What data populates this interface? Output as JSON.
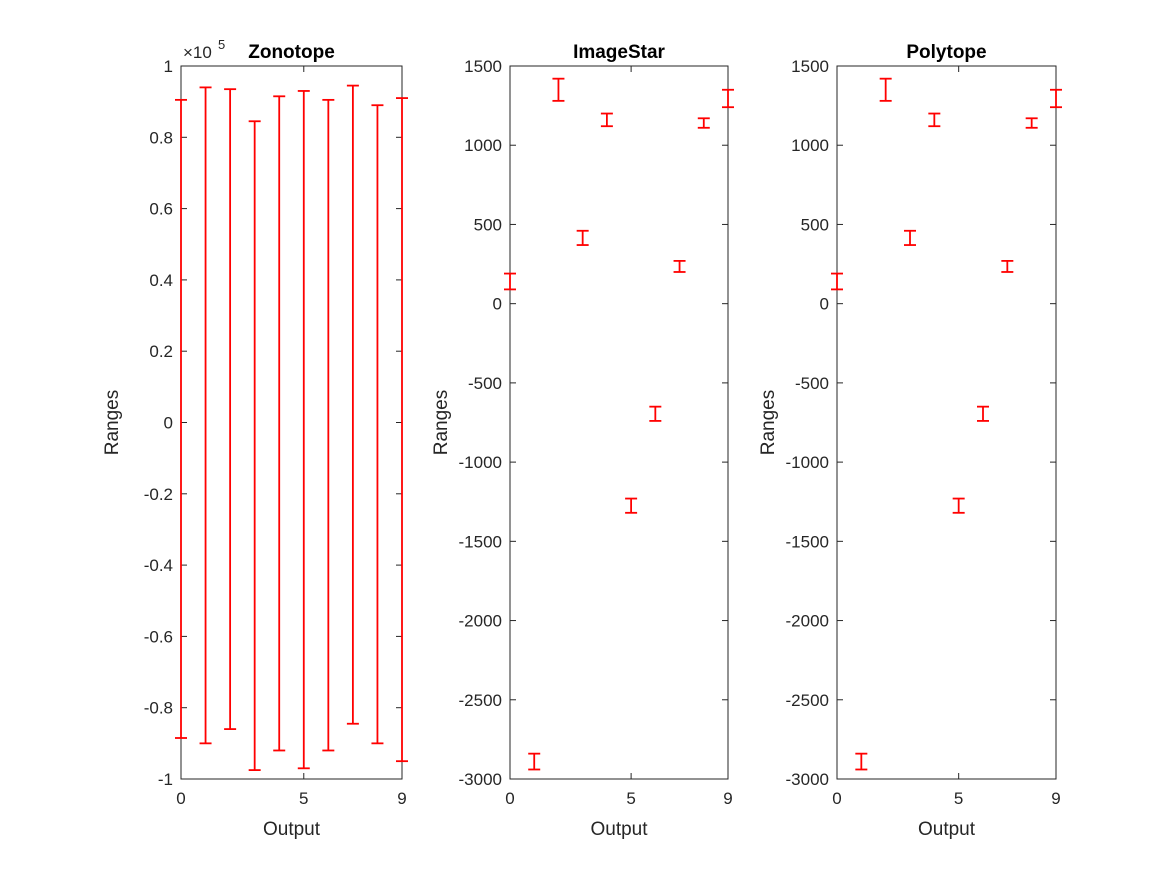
{
  "figure": {
    "background": "#ffffff",
    "error_bar_color": "#ff0000",
    "axis_color": "#262626"
  },
  "chart_data": [
    {
      "type": "errorbar",
      "title": "Zonotope",
      "xlabel": "Output",
      "ylabel": "Ranges",
      "exponent_label": "×10",
      "exponent_power": "5",
      "xlim": [
        0,
        9
      ],
      "ylim": [
        -1,
        1
      ],
      "xticks": [
        0,
        5,
        9
      ],
      "xtick_labels": [
        "0",
        "5",
        "9"
      ],
      "yticks": [
        -1,
        -0.8,
        -0.6,
        -0.4,
        -0.2,
        0,
        0.2,
        0.4,
        0.6,
        0.8,
        1
      ],
      "ytick_labels": [
        "-1",
        "-0.8",
        "-0.6",
        "-0.4",
        "-0.2",
        "0",
        "0.2",
        "0.4",
        "0.6",
        "0.8",
        "1"
      ],
      "grid": false,
      "series": [
        {
          "x": [
            0,
            1,
            2,
            3,
            4,
            5,
            6,
            7,
            8,
            9
          ],
          "lower": [
            -0.885,
            -0.9,
            -0.86,
            -0.975,
            -0.92,
            -0.97,
            -0.92,
            -0.845,
            -0.9,
            -0.95
          ],
          "upper": [
            0.905,
            0.94,
            0.935,
            0.845,
            0.915,
            0.93,
            0.905,
            0.945,
            0.89,
            0.91
          ]
        }
      ]
    },
    {
      "type": "errorbar",
      "title": "ImageStar",
      "xlabel": "Output",
      "ylabel": "Ranges",
      "xlim": [
        0,
        9
      ],
      "ylim": [
        -3000,
        1500
      ],
      "xticks": [
        0,
        5,
        9
      ],
      "xtick_labels": [
        "0",
        "5",
        "9"
      ],
      "yticks": [
        -3000,
        -2500,
        -2000,
        -1500,
        -1000,
        -500,
        0,
        500,
        1000,
        1500
      ],
      "ytick_labels": [
        "-3000",
        "-2500",
        "-2000",
        "-1500",
        "-1000",
        "-500",
        "0",
        "500",
        "1000",
        "1500"
      ],
      "grid": false,
      "series": [
        {
          "x": [
            0,
            1,
            2,
            3,
            4,
            5,
            6,
            7,
            8,
            9
          ],
          "lower": [
            90,
            -2940,
            1280,
            370,
            1120,
            -1320,
            -740,
            200,
            1110,
            1240
          ],
          "upper": [
            190,
            -2840,
            1420,
            460,
            1200,
            -1230,
            -650,
            270,
            1170,
            1350
          ]
        }
      ]
    },
    {
      "type": "errorbar",
      "title": "Polytope",
      "xlabel": "Output",
      "ylabel": "Ranges",
      "xlim": [
        0,
        9
      ],
      "ylim": [
        -3000,
        1500
      ],
      "xticks": [
        0,
        5,
        9
      ],
      "xtick_labels": [
        "0",
        "5",
        "9"
      ],
      "yticks": [
        -3000,
        -2500,
        -2000,
        -1500,
        -1000,
        -500,
        0,
        500,
        1000,
        1500
      ],
      "ytick_labels": [
        "-3000",
        "-2500",
        "-2000",
        "-1500",
        "-1000",
        "-500",
        "0",
        "500",
        "1000",
        "1500"
      ],
      "grid": false,
      "series": [
        {
          "x": [
            0,
            1,
            2,
            3,
            4,
            5,
            6,
            7,
            8,
            9
          ],
          "lower": [
            90,
            -2940,
            1280,
            370,
            1120,
            -1320,
            -740,
            200,
            1110,
            1240
          ],
          "upper": [
            190,
            -2840,
            1420,
            460,
            1200,
            -1230,
            -650,
            270,
            1170,
            1350
          ]
        }
      ]
    }
  ]
}
